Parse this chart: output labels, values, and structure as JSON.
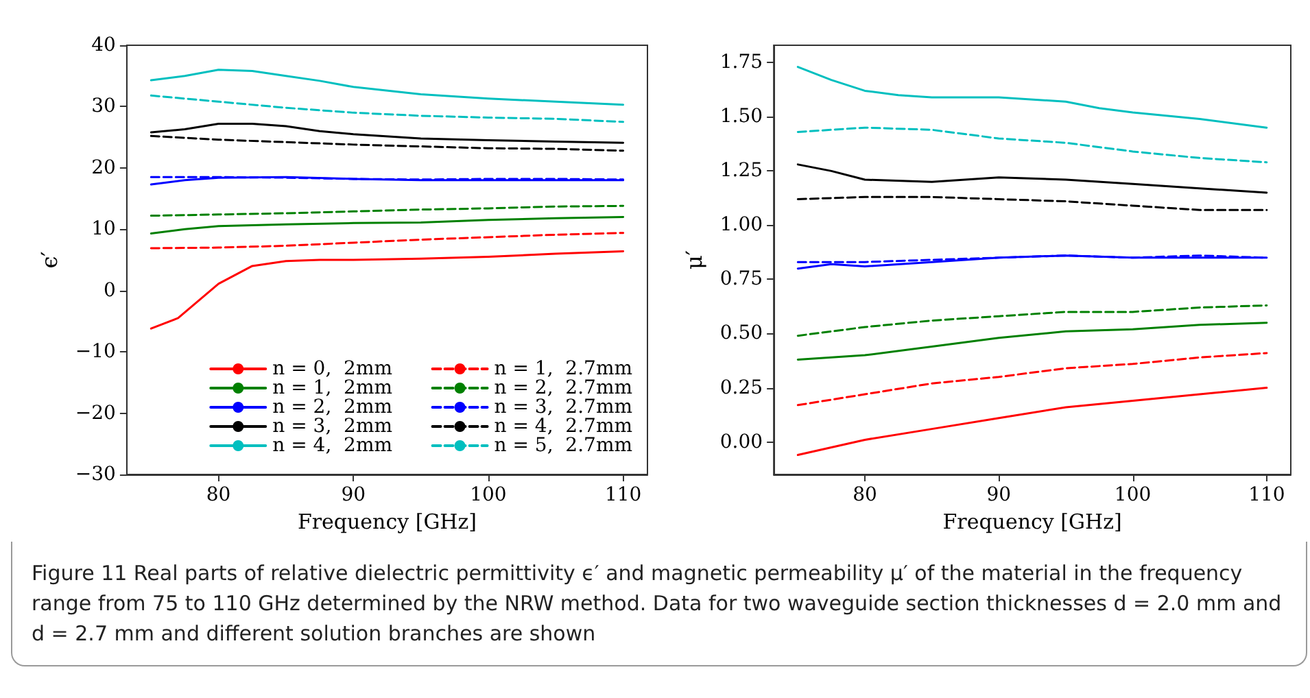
{
  "chart_data": [
    {
      "type": "line",
      "xlabel": "Frequency [GHz]",
      "ylabel": "ϵ′",
      "xlim": [
        73.2,
        111.8
      ],
      "ylim": [
        -30,
        40
      ],
      "xticks": [
        80,
        90,
        100,
        110
      ],
      "yticks": [
        -30,
        -20,
        -10,
        0,
        10,
        20,
        30,
        40
      ],
      "grid": false,
      "legend": "bottom right",
      "marker": "none",
      "line_style": "solid",
      "annotations": [
        "Figure 11 Real parts of relative dielectric permittivity ϵ′ and magnetic permeability μ′ of the material in the frequency range from 75 to 110 GHz determined by the NRW method. Data for two waveguide section thicknesses d = 2.0 mm and d = 2.7 mm and different solution branches are shown"
      ],
      "series": [
        {
          "name": "n = 0,  2mm",
          "color": "#ff0000",
          "x": [
            75,
            77,
            80,
            82.5,
            85,
            87.5,
            90,
            95,
            100,
            105,
            110
          ],
          "values": [
            -6.2,
            -4.5,
            1.1,
            4,
            4.8,
            5,
            5,
            5.2,
            5.5,
            6,
            6.4
          ]
        },
        {
          "name": "n = 1,  2mm",
          "color": "#008000",
          "x": [
            75,
            77.5,
            80,
            85,
            90,
            95,
            100,
            105,
            110
          ],
          "values": [
            9.3,
            10,
            10.5,
            10.8,
            11,
            11.1,
            11.5,
            11.8,
            12
          ]
        },
        {
          "name": "n = 2,  2mm",
          "color": "#0000ff",
          "x": [
            75,
            77.5,
            80,
            85,
            90,
            95,
            100,
            105,
            110
          ],
          "values": [
            17.3,
            18,
            18.4,
            18.5,
            18.2,
            18,
            18,
            18,
            18
          ]
        },
        {
          "name": "n = 3,  2mm",
          "color": "#000000",
          "x": [
            75,
            77.5,
            80,
            82.5,
            85,
            87.5,
            90,
            95,
            100,
            105,
            110
          ],
          "values": [
            25.8,
            26.3,
            27.2,
            27.2,
            26.8,
            26,
            25.5,
            24.8,
            24.5,
            24.3,
            24.1
          ]
        },
        {
          "name": "n = 4,  2mm",
          "color": "#00bfbf",
          "x": [
            75,
            77.5,
            80,
            82.5,
            85,
            87.5,
            90,
            95,
            100,
            105,
            110
          ],
          "values": [
            34.3,
            35,
            36,
            35.8,
            35,
            34.2,
            33.2,
            32,
            31.3,
            30.8,
            30.3
          ]
        },
        {
          "name": "n = 1,  2.7mm",
          "color": "#ff0000",
          "line_style": "dashed",
          "x": [
            75,
            80,
            85,
            90,
            95,
            100,
            105,
            110
          ],
          "values": [
            6.9,
            7,
            7.3,
            7.8,
            8.3,
            8.7,
            9.1,
            9.4
          ]
        },
        {
          "name": "n = 2,  2.7mm",
          "color": "#008000",
          "line_style": "dashed",
          "x": [
            75,
            80,
            85,
            90,
            95,
            100,
            105,
            110
          ],
          "values": [
            12.2,
            12.4,
            12.6,
            12.9,
            13.2,
            13.4,
            13.7,
            13.8
          ]
        },
        {
          "name": "n = 3,  2.7mm",
          "color": "#0000ff",
          "line_style": "dashed",
          "x": [
            75,
            80,
            85,
            90,
            95,
            100,
            105,
            110
          ],
          "values": [
            18.5,
            18.5,
            18.4,
            18.2,
            18.1,
            18.2,
            18.2,
            18.1
          ]
        },
        {
          "name": "n = 4,  2.7mm",
          "color": "#000000",
          "line_style": "dashed",
          "x": [
            75,
            80,
            85,
            90,
            95,
            100,
            105,
            110
          ],
          "values": [
            25.2,
            24.6,
            24.2,
            23.8,
            23.5,
            23.2,
            23.1,
            22.8
          ]
        },
        {
          "name": "n = 5,  2.7mm",
          "color": "#00bfbf",
          "line_style": "dashed",
          "x": [
            75,
            80,
            85,
            90,
            95,
            100,
            105,
            110
          ],
          "values": [
            31.8,
            30.8,
            29.8,
            29,
            28.5,
            28.2,
            28,
            27.5
          ]
        }
      ]
    },
    {
      "type": "line",
      "xlabel": "Frequency [GHz]",
      "ylabel": "μ′",
      "xlim": [
        73.2,
        111.8
      ],
      "ylim": [
        -0.15,
        1.83
      ],
      "xticks": [
        80,
        90,
        100,
        110
      ],
      "yticks": [
        {
          "value": 0,
          "label": "0.00"
        },
        {
          "value": 0.25,
          "label": "0.25"
        },
        {
          "value": 0.5,
          "label": "0.50"
        },
        {
          "value": 0.75,
          "label": "0.75"
        },
        {
          "value": 1,
          "label": "1.00"
        },
        {
          "value": 1.25,
          "label": "1.25"
        },
        {
          "value": 1.5,
          "label": "1.50"
        },
        {
          "value": 1.75,
          "label": "1.75"
        }
      ],
      "grid": false,
      "marker": "none",
      "line_style": "solid",
      "series": [
        {
          "color": "#ff0000",
          "x": [
            75,
            80,
            85,
            90,
            95,
            100,
            105,
            110
          ],
          "values": [
            -0.06,
            0.01,
            0.06,
            0.11,
            0.16,
            0.19,
            0.22,
            0.25
          ]
        },
        {
          "color": "#008000",
          "x": [
            75,
            80,
            85,
            90,
            95,
            100,
            105,
            110
          ],
          "values": [
            0.38,
            0.4,
            0.44,
            0.48,
            0.51,
            0.52,
            0.54,
            0.55
          ]
        },
        {
          "color": "#0000ff",
          "x": [
            75,
            77.5,
            80,
            85,
            90,
            95,
            100,
            105,
            110
          ],
          "values": [
            0.8,
            0.82,
            0.81,
            0.83,
            0.85,
            0.86,
            0.85,
            0.85,
            0.85
          ]
        },
        {
          "color": "#000000",
          "x": [
            75,
            77.5,
            80,
            85,
            90,
            95,
            100,
            105,
            110
          ],
          "values": [
            1.28,
            1.25,
            1.21,
            1.2,
            1.22,
            1.21,
            1.19,
            1.17,
            1.15
          ]
        },
        {
          "color": "#00bfbf",
          "x": [
            75,
            77.5,
            80,
            82.5,
            85,
            90,
            95,
            97.5,
            100,
            105,
            110
          ],
          "values": [
            1.73,
            1.67,
            1.62,
            1.6,
            1.59,
            1.59,
            1.57,
            1.54,
            1.52,
            1.49,
            1.45
          ]
        },
        {
          "color": "#ff0000",
          "line_style": "dashed",
          "x": [
            75,
            80,
            85,
            90,
            95,
            100,
            105,
            110
          ],
          "values": [
            0.17,
            0.22,
            0.27,
            0.3,
            0.34,
            0.36,
            0.39,
            0.41
          ]
        },
        {
          "color": "#008000",
          "line_style": "dashed",
          "x": [
            75,
            80,
            85,
            90,
            95,
            100,
            105,
            110
          ],
          "values": [
            0.49,
            0.53,
            0.56,
            0.58,
            0.6,
            0.6,
            0.62,
            0.63
          ]
        },
        {
          "color": "#0000ff",
          "line_style": "dashed",
          "x": [
            75,
            80,
            85,
            90,
            95,
            100,
            105,
            110
          ],
          "values": [
            0.83,
            0.83,
            0.84,
            0.85,
            0.86,
            0.85,
            0.86,
            0.85
          ]
        },
        {
          "color": "#000000",
          "line_style": "dashed",
          "x": [
            75,
            80,
            85,
            90,
            95,
            100,
            105,
            110
          ],
          "values": [
            1.12,
            1.13,
            1.13,
            1.12,
            1.11,
            1.09,
            1.07,
            1.07
          ]
        },
        {
          "color": "#00bfbf",
          "line_style": "dashed",
          "x": [
            75,
            80,
            85,
            90,
            95,
            100,
            105,
            110
          ],
          "values": [
            1.43,
            1.45,
            1.44,
            1.4,
            1.38,
            1.34,
            1.31,
            1.29
          ]
        }
      ]
    }
  ]
}
